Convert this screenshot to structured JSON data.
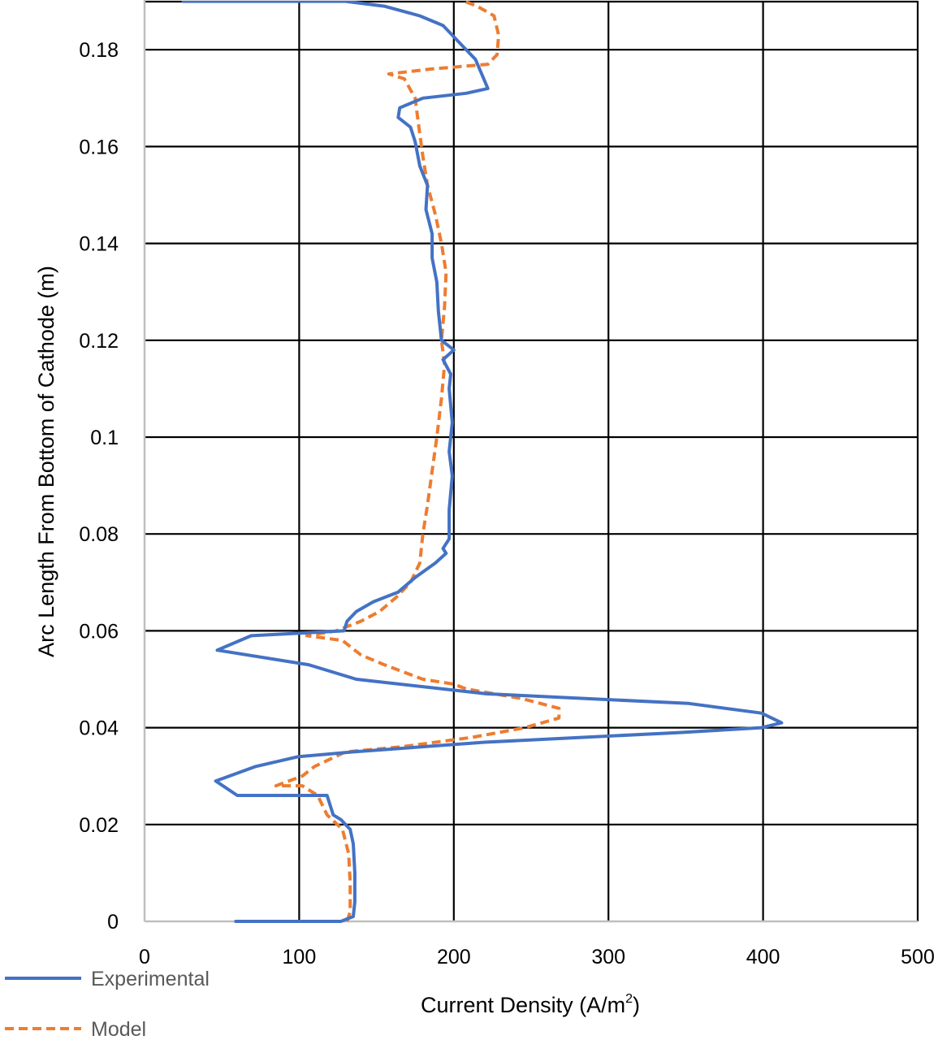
{
  "chart_data": {
    "type": "line",
    "orientation": "vertical-profile",
    "title": "",
    "xlabel": "Current Density (A/m²)",
    "ylabel": "Arc Length  From Bottom of Cathode (m)",
    "xlim": [
      0,
      500
    ],
    "ylim": [
      0,
      0.19
    ],
    "x_ticks": [
      "0",
      "100",
      "200",
      "300",
      "400",
      "500"
    ],
    "y_ticks": [
      "0",
      "0.02",
      "0.04",
      "0.06",
      "0.08",
      "0.1",
      "0.12",
      "0.14",
      "0.16",
      "0.18"
    ],
    "grid": true,
    "legend_position": "bottom-left",
    "series": [
      {
        "name": "Experimental",
        "color": "#4472C4",
        "style": "solid",
        "points": [
          [
            59,
            0.0
          ],
          [
            127,
            0.0
          ],
          [
            135,
            0.001
          ],
          [
            136,
            0.004
          ],
          [
            136,
            0.01
          ],
          [
            135,
            0.016
          ],
          [
            133,
            0.019
          ],
          [
            127,
            0.021
          ],
          [
            122,
            0.022
          ],
          [
            118,
            0.026
          ],
          [
            60,
            0.026
          ],
          [
            46,
            0.029
          ],
          [
            72,
            0.032
          ],
          [
            99,
            0.034
          ],
          [
            135,
            0.035
          ],
          [
            220,
            0.037
          ],
          [
            346,
            0.039
          ],
          [
            399,
            0.04
          ],
          [
            412,
            0.041
          ],
          [
            399,
            0.043
          ],
          [
            352,
            0.045
          ],
          [
            221,
            0.047
          ],
          [
            137,
            0.05
          ],
          [
            106,
            0.053
          ],
          [
            47,
            0.056
          ],
          [
            69,
            0.059
          ],
          [
            129,
            0.06
          ],
          [
            131,
            0.062
          ],
          [
            137,
            0.064
          ],
          [
            148,
            0.066
          ],
          [
            164,
            0.068
          ],
          [
            175,
            0.071
          ],
          [
            188,
            0.074
          ],
          [
            195,
            0.076
          ],
          [
            193,
            0.077
          ],
          [
            197,
            0.079
          ],
          [
            197,
            0.085
          ],
          [
            199,
            0.092
          ],
          [
            197,
            0.097
          ],
          [
            199,
            0.103
          ],
          [
            197,
            0.11
          ],
          [
            198,
            0.113
          ],
          [
            193,
            0.116
          ],
          [
            200,
            0.118
          ],
          [
            192,
            0.12
          ],
          [
            190,
            0.126
          ],
          [
            189,
            0.132
          ],
          [
            186,
            0.137
          ],
          [
            186,
            0.142
          ],
          [
            182,
            0.147
          ],
          [
            183,
            0.152
          ],
          [
            178,
            0.156
          ],
          [
            175,
            0.161
          ],
          [
            172,
            0.164
          ],
          [
            164,
            0.166
          ],
          [
            165,
            0.168
          ],
          [
            180,
            0.17
          ],
          [
            208,
            0.171
          ],
          [
            222,
            0.172
          ],
          [
            218,
            0.175
          ],
          [
            214,
            0.178
          ],
          [
            205,
            0.181
          ],
          [
            199,
            0.183
          ],
          [
            193,
            0.185
          ],
          [
            178,
            0.187
          ],
          [
            155,
            0.189
          ],
          [
            130,
            0.19
          ],
          [
            25,
            0.19
          ]
        ]
      },
      {
        "name": "Model",
        "color": "#ED7D31",
        "style": "dashed",
        "points": [
          [
            131,
            0.0
          ],
          [
            133,
            0.002
          ],
          [
            133,
            0.008
          ],
          [
            132,
            0.014
          ],
          [
            128,
            0.019
          ],
          [
            118,
            0.022
          ],
          [
            112,
            0.026
          ],
          [
            102,
            0.028
          ],
          [
            85,
            0.028
          ],
          [
            102,
            0.03
          ],
          [
            110,
            0.032
          ],
          [
            130,
            0.035
          ],
          [
            165,
            0.036
          ],
          [
            212,
            0.038
          ],
          [
            246,
            0.04
          ],
          [
            268,
            0.042
          ],
          [
            268,
            0.044
          ],
          [
            244,
            0.046
          ],
          [
            208,
            0.048
          ],
          [
            200,
            0.049
          ],
          [
            180,
            0.05
          ],
          [
            155,
            0.053
          ],
          [
            140,
            0.055
          ],
          [
            128,
            0.058
          ],
          [
            105,
            0.059
          ],
          [
            124,
            0.06
          ],
          [
            140,
            0.062
          ],
          [
            152,
            0.064
          ],
          [
            163,
            0.067
          ],
          [
            172,
            0.07
          ],
          [
            178,
            0.074
          ],
          [
            180,
            0.08
          ],
          [
            183,
            0.086
          ],
          [
            186,
            0.093
          ],
          [
            189,
            0.1
          ],
          [
            192,
            0.108
          ],
          [
            194,
            0.115
          ],
          [
            192,
            0.12
          ],
          [
            194,
            0.127
          ],
          [
            195,
            0.134
          ],
          [
            192,
            0.14
          ],
          [
            188,
            0.146
          ],
          [
            183,
            0.152
          ],
          [
            180,
            0.158
          ],
          [
            177,
            0.165
          ],
          [
            175,
            0.17
          ],
          [
            168,
            0.174
          ],
          [
            158,
            0.175
          ],
          [
            185,
            0.176
          ],
          [
            222,
            0.177
          ],
          [
            228,
            0.179
          ],
          [
            229,
            0.183
          ],
          [
            226,
            0.187
          ],
          [
            215,
            0.189
          ],
          [
            207,
            0.19
          ]
        ]
      }
    ]
  },
  "legend": {
    "items": [
      {
        "label": "Experimental",
        "color": "#4472C4",
        "style": "solid"
      },
      {
        "label": "Model",
        "color": "#ED7D31",
        "style": "dashed"
      }
    ]
  },
  "axes": {
    "x_title": "Current Density (A/m",
    "x_title_sup": "2",
    "x_title_close": ")",
    "y_title": "Arc Length  From Bottom of Cathode (m)"
  }
}
